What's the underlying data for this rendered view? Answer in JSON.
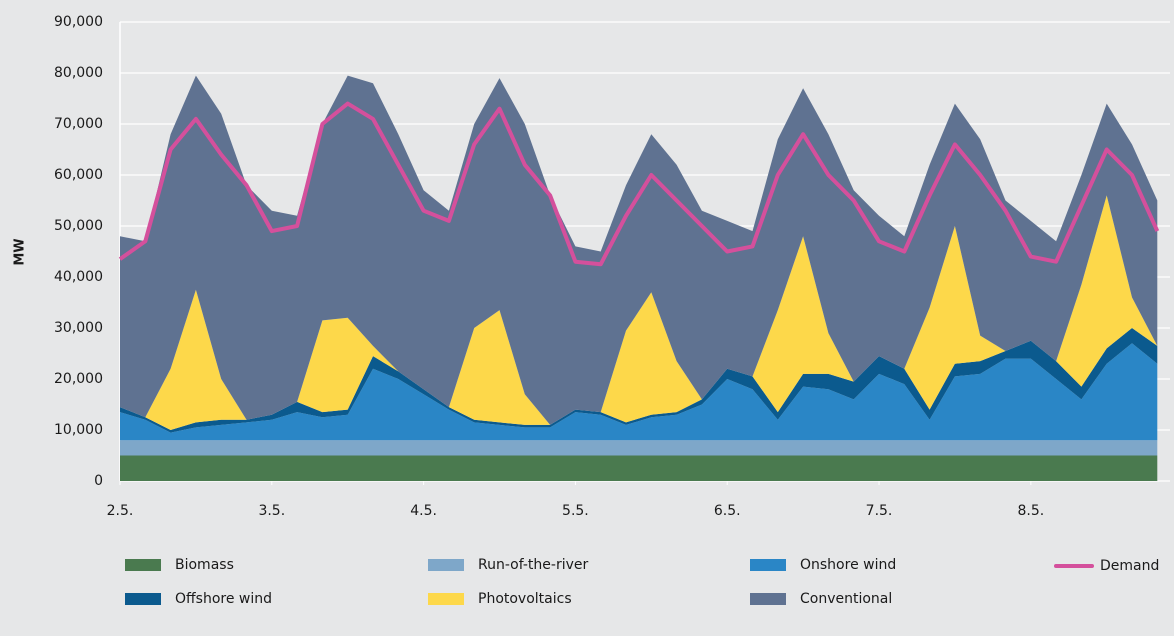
{
  "chart_data": {
    "type": "stacked_area",
    "ylabel": "MW",
    "x": [
      0,
      4,
      8,
      12,
      16,
      20,
      24,
      28,
      32,
      36,
      40,
      44,
      48,
      52,
      56,
      60,
      64,
      68,
      72,
      76,
      80,
      84,
      88,
      92,
      96,
      100,
      104,
      108,
      112,
      116,
      120,
      124,
      128,
      132,
      136,
      140,
      144,
      148,
      152,
      156,
      160,
      164
    ],
    "xlim": [
      0,
      166
    ],
    "xticks": [
      {
        "value": 0,
        "label": "2.5."
      },
      {
        "value": 24,
        "label": "3.5."
      },
      {
        "value": 48,
        "label": "4.5."
      },
      {
        "value": 72,
        "label": "5.5."
      },
      {
        "value": 96,
        "label": "6.5."
      },
      {
        "value": 120,
        "label": "7.5."
      },
      {
        "value": 144,
        "label": "8.5."
      }
    ],
    "ylim": [
      0,
      90000
    ],
    "yticks": [
      0,
      {
        "value": 10000,
        "label": "10,000"
      },
      {
        "value": 20000,
        "label": "20,000"
      },
      {
        "value": 30000,
        "label": "30,000"
      },
      {
        "value": 40000,
        "label": "40,000"
      },
      {
        "value": 50000,
        "label": "50,000"
      },
      {
        "value": 60000,
        "label": "60,000"
      },
      {
        "value": 70000,
        "label": "70,000"
      },
      {
        "value": 80000,
        "label": "80,000"
      },
      {
        "value": 90000,
        "label": "90,000"
      }
    ],
    "grid": true,
    "series": [
      {
        "name": "Biomass",
        "color": "#4a7a4f",
        "values": [
          5000,
          5000,
          5000,
          5000,
          5000,
          5000,
          5000,
          5000,
          5000,
          5000,
          5000,
          5000,
          5000,
          5000,
          5000,
          5000,
          5000,
          5000,
          5000,
          5000,
          5000,
          5000,
          5000,
          5000,
          5000,
          5000,
          5000,
          5000,
          5000,
          5000,
          5000,
          5000,
          5000,
          5000,
          5000,
          5000,
          5000,
          5000,
          5000,
          5000,
          5000,
          5000
        ]
      },
      {
        "name": "Run-of-the-river",
        "color": "#7ea7c9",
        "values": [
          3000,
          3000,
          3000,
          3000,
          3000,
          3000,
          3000,
          3000,
          3000,
          3000,
          3000,
          3000,
          3000,
          3000,
          3000,
          3000,
          3000,
          3000,
          3000,
          3000,
          3000,
          3000,
          3000,
          3000,
          3000,
          3000,
          3000,
          3000,
          3000,
          3000,
          3000,
          3000,
          3000,
          3000,
          3000,
          3000,
          3000,
          3000,
          3000,
          3000,
          3000,
          3000
        ]
      },
      {
        "name": "Onshore wind",
        "color": "#2a86c6",
        "values": [
          5500,
          4000,
          1500,
          2500,
          3000,
          3500,
          4000,
          5500,
          4500,
          5000,
          14000,
          12000,
          9000,
          6000,
          3500,
          3000,
          2500,
          2500,
          5500,
          5000,
          3000,
          4500,
          5000,
          7000,
          12000,
          10000,
          4000,
          10500,
          10000,
          8000,
          13000,
          11000,
          4000,
          12500,
          13000,
          16000,
          16000,
          12000,
          8000,
          15000,
          19000,
          15000
        ]
      },
      {
        "name": "Offshore wind",
        "color": "#0b5a8e",
        "values": [
          1000,
          500,
          500,
          1000,
          1000,
          500,
          1000,
          2000,
          1000,
          1000,
          2500,
          1500,
          1000,
          500,
          500,
          500,
          500,
          500,
          500,
          500,
          500,
          500,
          500,
          1000,
          2000,
          2500,
          1500,
          2500,
          3000,
          3500,
          3500,
          3000,
          2000,
          2500,
          2500,
          1500,
          3500,
          3500,
          2500,
          3000,
          3000,
          3500
        ]
      },
      {
        "name": "Photovoltaics",
        "color": "#fdd84a",
        "values": [
          0,
          0,
          12000,
          26000,
          8000,
          0,
          0,
          0,
          18000,
          18000,
          2000,
          0,
          0,
          0,
          18000,
          22000,
          6000,
          0,
          0,
          0,
          18000,
          24000,
          10000,
          0,
          0,
          0,
          20000,
          27000,
          8000,
          0,
          0,
          0,
          20000,
          27000,
          5000,
          0,
          0,
          0,
          20000,
          30000,
          6000,
          0
        ]
      },
      {
        "name": "Conventional",
        "color": "#5f7291",
        "values": [
          33500,
          34500,
          46000,
          42000,
          52000,
          46000,
          40000,
          36500,
          38500,
          47500,
          51500,
          46500,
          39000,
          38500,
          40000,
          45500,
          53000,
          45000,
          32000,
          31500,
          28500,
          31000,
          38500,
          37000,
          29000,
          28500,
          33500,
          29000,
          39000,
          37500,
          27500,
          26000,
          28000,
          24000,
          38500,
          29500,
          23500,
          23500,
          21500,
          18000,
          30000,
          28500
        ]
      },
      {
        "name": "Demand",
        "type": "line",
        "color": "#d4509c",
        "values": [
          43500,
          47000,
          65000,
          71000,
          64000,
          58000,
          49000,
          50000,
          70000,
          74000,
          71000,
          62000,
          53000,
          51000,
          66000,
          73000,
          62000,
          56000,
          43000,
          42500,
          52000,
          60000,
          55000,
          50000,
          45000,
          46000,
          60000,
          68000,
          60000,
          55000,
          47000,
          45000,
          56000,
          66000,
          60000,
          53000,
          44000,
          43000,
          54000,
          65000,
          60000,
          49000
        ]
      }
    ]
  }
}
